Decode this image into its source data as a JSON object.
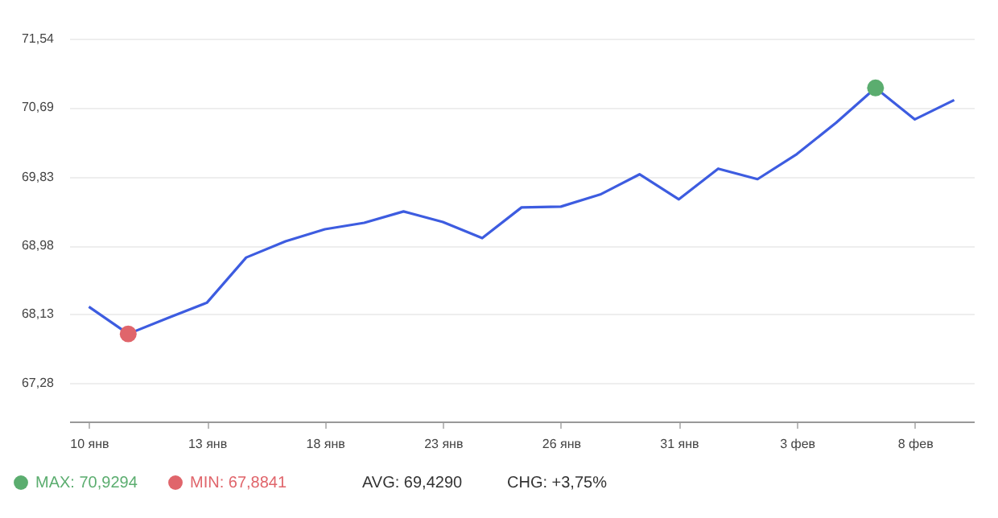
{
  "chart_data": {
    "type": "line",
    "categories": [
      "10 янв",
      null,
      null,
      "13 янв",
      null,
      null,
      "18 янв",
      null,
      null,
      "23 янв",
      null,
      null,
      "26 янв",
      null,
      null,
      "31 янв",
      null,
      null,
      "3 фев",
      null,
      null,
      "8 фев",
      null
    ],
    "series": [
      {
        "color": "#3d5ce0",
        "values": [
          68.22,
          67.8841,
          68.08,
          68.27,
          68.83,
          69.03,
          69.18,
          69.26,
          69.4,
          69.27,
          69.07,
          69.45,
          69.46,
          69.61,
          69.86,
          69.55,
          69.93,
          69.8,
          70.11,
          70.5,
          70.9294,
          70.54,
          70.78
        ]
      },
      {
        "type": "scatter",
        "marker": "circle",
        "name": "MAX: 70,9294",
        "color": "#5bad6f",
        "values": [
          null,
          null,
          null,
          null,
          null,
          null,
          null,
          null,
          null,
          null,
          null,
          null,
          null,
          null,
          null,
          null,
          null,
          null,
          null,
          null,
          70.9294,
          null,
          null
        ]
      },
      {
        "type": "scatter",
        "marker": "circle",
        "name": "MIN: 67,8841",
        "color": "#e0656b",
        "values": [
          null,
          67.8841,
          null,
          null,
          null,
          null,
          null,
          null,
          null,
          null,
          null,
          null,
          null,
          null,
          null,
          null,
          null,
          null,
          null,
          null,
          null,
          null,
          null
        ]
      }
    ],
    "ylim": [
      66.8,
      71.54
    ],
    "yticks": [
      {
        "value": 67.28,
        "label": "67,28"
      },
      {
        "value": 68.13,
        "label": "68,13"
      },
      {
        "value": 68.98,
        "label": "68,98"
      },
      {
        "value": 69.83,
        "label": "69,83"
      },
      {
        "value": 70.69,
        "label": "70,69"
      },
      {
        "value": 71.54,
        "label": "71,54"
      }
    ],
    "grid": "y",
    "legend": "bottom left",
    "marker": "none",
    "line_style": "solid",
    "annotations": [
      "AVG: 69,4290",
      "CHG: +3,75%"
    ]
  }
}
